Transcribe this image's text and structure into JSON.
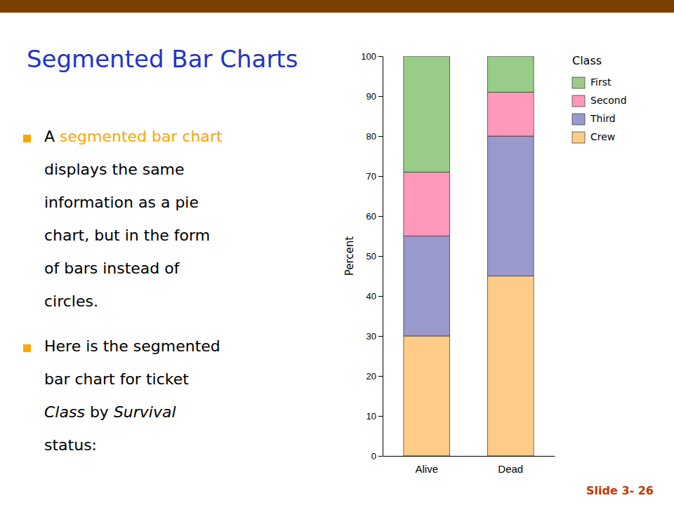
{
  "chart_data": {
    "type": "bar",
    "stacked": true,
    "title": "Segmented Bar Charts",
    "annotations": [
      [
        [
          "A ",
          "segmented bar chart"
        ],
        [
          "displays the same"
        ],
        [
          "information as a pie"
        ],
        [
          "chart, but in the form"
        ],
        [
          "of bars instead of"
        ],
        [
          "circles."
        ]
      ],
      [
        [
          "Here is the segmented"
        ],
        [
          "bar chart for ticket"
        ],
        [
          "Class",
          " by ",
          "Survival"
        ],
        [
          "status:"
        ]
      ],
      [
        [
          "Slide 3- 26"
        ]
      ]
    ],
    "categories": [
      "Alive",
      "Dead"
    ],
    "series": [
      {
        "name": "Crew",
        "color": "#FFCC88",
        "values": [
          30,
          45
        ]
      },
      {
        "name": "Third",
        "color": "#9999CC",
        "values": [
          25,
          35
        ]
      },
      {
        "name": "Second",
        "color": "#FF99BB",
        "values": [
          16,
          11
        ]
      },
      {
        "name": "First",
        "color": "#99CC88",
        "values": [
          29,
          9
        ]
      }
    ],
    "ylabel": "Percent",
    "ylim": [
      0,
      100
    ],
    "yticks": [
      0,
      10,
      20,
      30,
      40,
      50,
      60,
      70,
      80,
      90,
      100
    ],
    "legend_title": "Class",
    "legend": "right",
    "grid": false
  }
}
